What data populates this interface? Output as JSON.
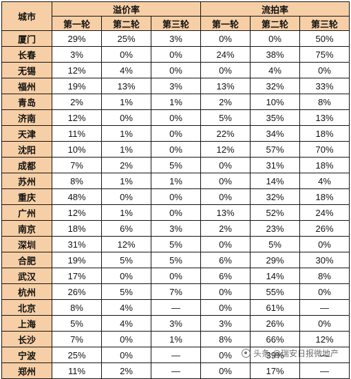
{
  "header": {
    "city": "城市",
    "premium_rate": "溢价率",
    "failed_rate": "流拍率",
    "rounds": [
      "第一轮",
      "第二轮",
      "第三轮"
    ]
  },
  "rows": [
    {
      "city": "厦门",
      "premium": [
        "29%",
        "25%",
        "3%"
      ],
      "failed": [
        "0%",
        "0%",
        "50%"
      ]
    },
    {
      "city": "长春",
      "premium": [
        "3%",
        "0%",
        "0%"
      ],
      "failed": [
        "24%",
        "38%",
        "75%"
      ]
    },
    {
      "city": "无锡",
      "premium": [
        "12%",
        "4%",
        "0%"
      ],
      "failed": [
        "0%",
        "4%",
        "0%"
      ]
    },
    {
      "city": "福州",
      "premium": [
        "19%",
        "13%",
        "3%"
      ],
      "failed": [
        "13%",
        "32%",
        "33%"
      ]
    },
    {
      "city": "青岛",
      "premium": [
        "2%",
        "1%",
        "1%"
      ],
      "failed": [
        "2%",
        "10%",
        "8%"
      ]
    },
    {
      "city": "济南",
      "premium": [
        "12%",
        "0%",
        "0%"
      ],
      "failed": [
        "5%",
        "35%",
        "13%"
      ]
    },
    {
      "city": "天津",
      "premium": [
        "11%",
        "1%",
        "0%"
      ],
      "failed": [
        "22%",
        "34%",
        "18%"
      ]
    },
    {
      "city": "沈阳",
      "premium": [
        "10%",
        "1%",
        "0%"
      ],
      "failed": [
        "12%",
        "57%",
        "70%"
      ]
    },
    {
      "city": "成都",
      "premium": [
        "7%",
        "2%",
        "5%"
      ],
      "failed": [
        "0%",
        "31%",
        "18%"
      ]
    },
    {
      "city": "苏州",
      "premium": [
        "8%",
        "1%",
        "1%"
      ],
      "failed": [
        "0%",
        "14%",
        "4%"
      ]
    },
    {
      "city": "重庆",
      "premium": [
        "48%",
        "0%",
        "0%"
      ],
      "failed": [
        "0%",
        "32%",
        "18%"
      ]
    },
    {
      "city": "广州",
      "premium": [
        "12%",
        "1%",
        "0%"
      ],
      "failed": [
        "13%",
        "52%",
        "24%"
      ]
    },
    {
      "city": "南京",
      "premium": [
        "18%",
        "6%",
        "3%"
      ],
      "failed": [
        "2%",
        "23%",
        "26%"
      ]
    },
    {
      "city": "深圳",
      "premium": [
        "31%",
        "12%",
        "5%"
      ],
      "failed": [
        "0%",
        "5%",
        "0%"
      ]
    },
    {
      "city": "合肥",
      "premium": [
        "19%",
        "5%",
        "5%"
      ],
      "failed": [
        "6%",
        "29%",
        "30%"
      ]
    },
    {
      "city": "武汉",
      "premium": [
        "17%",
        "0%",
        "0%"
      ],
      "failed": [
        "6%",
        "14%",
        "8%"
      ]
    },
    {
      "city": "杭州",
      "premium": [
        "26%",
        "5%",
        "7%"
      ],
      "failed": [
        "0%",
        "55%",
        "0%"
      ]
    },
    {
      "city": "北京",
      "premium": [
        "8%",
        "4%",
        "—"
      ],
      "failed": [
        "0%",
        "61%",
        "—"
      ]
    },
    {
      "city": "上海",
      "premium": [
        "5%",
        "4%",
        "3%"
      ],
      "failed": [
        "3%",
        "26%",
        "0%"
      ]
    },
    {
      "city": "长沙",
      "premium": [
        "7%",
        "0%",
        "1%"
      ],
      "failed": [
        "8%",
        "66%",
        "12%"
      ]
    },
    {
      "city": "宁波",
      "premium": [
        "25%",
        "0%",
        "—"
      ],
      "failed": [
        "0%",
        "39%",
        "—"
      ]
    },
    {
      "city": "郑州",
      "premium": [
        "11%",
        "2%",
        "—"
      ],
      "failed": [
        "0%",
        "17%",
        "—"
      ]
    }
  ],
  "watermark": "头条 @瑞安日报微地产",
  "colors": {
    "header_bg": "#f7cfa6",
    "border": "#111111"
  }
}
